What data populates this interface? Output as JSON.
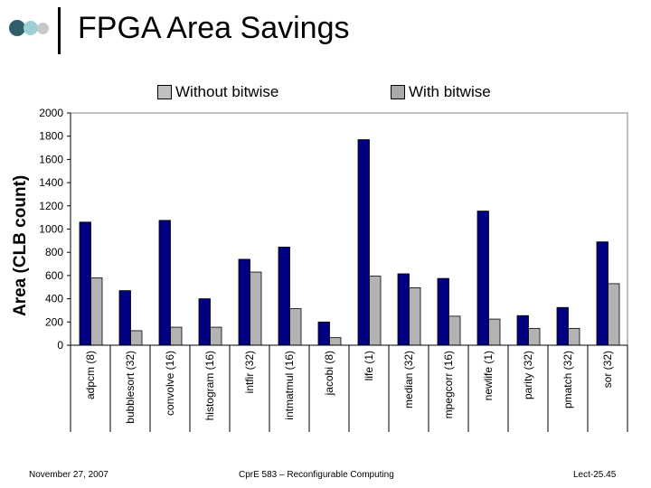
{
  "slide": {
    "title": "FPGA Area Savings",
    "footer_date": "November 27, 2007",
    "footer_course": "CprE 583 – Reconfigurable Computing",
    "footer_lecture": "Lect-25.45"
  },
  "colors": {
    "without": "#000080",
    "with": "#b3b3b3",
    "legend_without": "#c0c0c0",
    "legend_with": "#a8a8a8",
    "dot1": "#2e5f6a",
    "dot2": "#9ccfd6",
    "dot3": "#c8c8c8"
  },
  "chart_data": {
    "type": "bar",
    "title": "",
    "xlabel": "",
    "ylabel": "Area (CLB count)",
    "ylim": [
      0,
      2000
    ],
    "yticks": [
      "0",
      "200",
      "400",
      "600",
      "800",
      "1000",
      "1200",
      "1400",
      "1600",
      "1800",
      "2000"
    ],
    "grid": false,
    "legend_position": "top",
    "categories": [
      "adpcm (8)",
      "bubblesort (32)",
      "convolve (16)",
      "histogram (16)",
      "intfir (32)",
      "intmatmul (16)",
      "jacobi (8)",
      "life (1)",
      "median (32)",
      "mpegcorr (16)",
      "newlife (1)",
      "parity (32)",
      "pmatch (32)",
      "sor (32)"
    ],
    "series": [
      {
        "name": "Without bitwise",
        "values": [
          1060,
          470,
          1075,
          400,
          740,
          845,
          200,
          1770,
          615,
          575,
          1155,
          255,
          325,
          890
        ]
      },
      {
        "name": "With bitwise",
        "values": [
          580,
          125,
          155,
          155,
          630,
          315,
          65,
          595,
          495,
          250,
          225,
          145,
          145,
          530
        ]
      }
    ]
  }
}
